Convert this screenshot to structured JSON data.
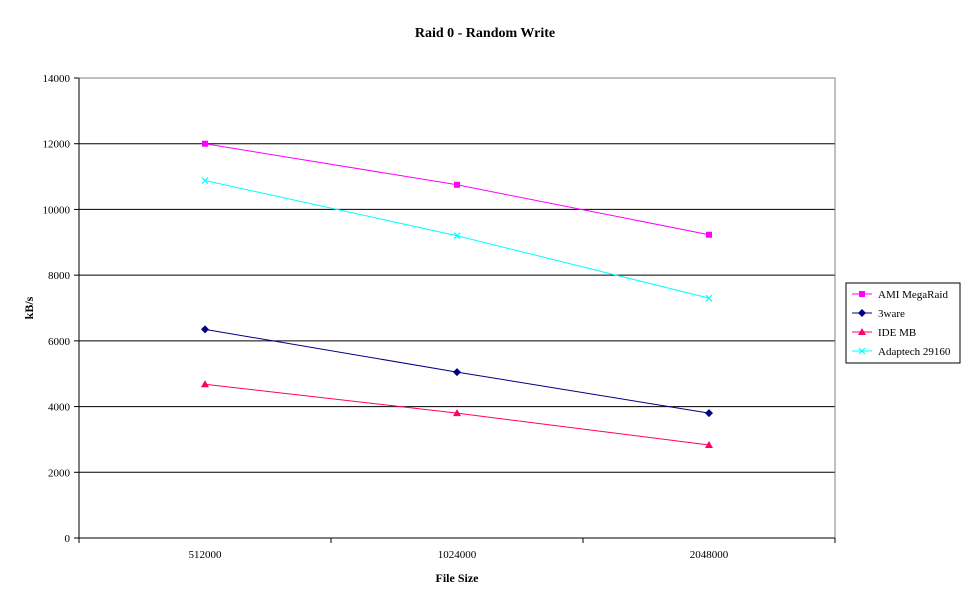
{
  "chart_data": {
    "type": "line",
    "title": "Raid 0 - Random Write",
    "xlabel": "File Size",
    "ylabel": "kB/s",
    "categories": [
      "512000",
      "1024000",
      "2048000"
    ],
    "ylim": [
      0,
      14000
    ],
    "yticks": [
      0,
      2000,
      4000,
      6000,
      8000,
      10000,
      12000,
      14000
    ],
    "ytick_labels": [
      "0",
      "2000",
      "4000",
      "6000",
      "8000",
      "10000",
      "12000",
      "14000"
    ],
    "grid": "horizontal",
    "legend_position": "right",
    "series": [
      {
        "name": "AMI MegaRaid",
        "color": "#ff00ff",
        "marker": "square",
        "values": [
          12000,
          10750,
          9230
        ]
      },
      {
        "name": "3ware",
        "color": "#000080",
        "marker": "diamond",
        "values": [
          6350,
          5050,
          3800
        ]
      },
      {
        "name": "IDE MB",
        "color": "#ff0066",
        "marker": "triangle",
        "values": [
          4680,
          3800,
          2830
        ]
      },
      {
        "name": "Adaptech 29160",
        "color": "#00ffff",
        "marker": "cross",
        "values": [
          10880,
          9200,
          7300
        ]
      }
    ]
  }
}
